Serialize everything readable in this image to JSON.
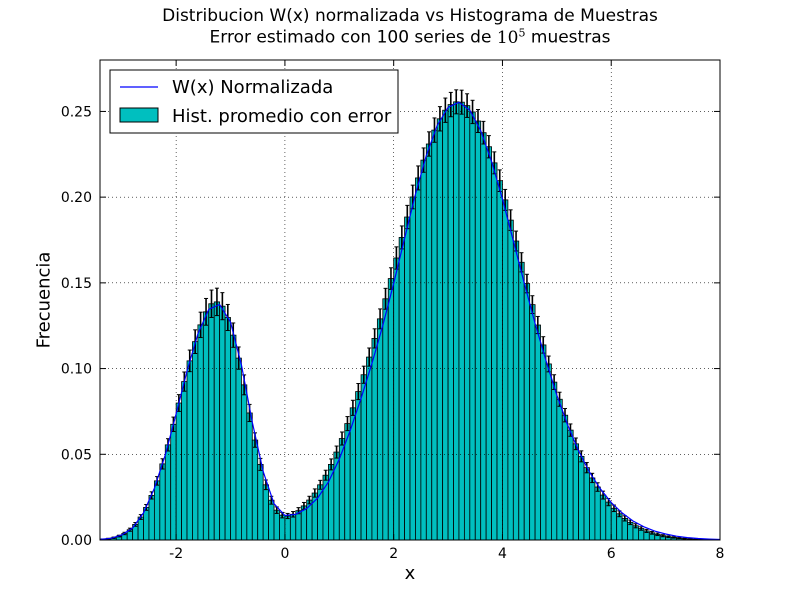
{
  "chart_data": {
    "type": "bar",
    "title": "Distribucion W(x) normalizada vs Histograma de Muestras",
    "subtitle_prefix": "Error estimado con 100 series de ",
    "subtitle_base": "10",
    "subtitle_exp": "5",
    "subtitle_suffix": " muestras",
    "xlabel": "x",
    "ylabel": "Frecuencia",
    "xlim": [
      -3.4,
      8.0
    ],
    "ylim": [
      0.0,
      0.28
    ],
    "x_ticks": [
      -2,
      0,
      2,
      4,
      6,
      8
    ],
    "x_tick_labels": [
      "-2",
      "0",
      "2",
      "4",
      "6",
      "8"
    ],
    "y_ticks": [
      0.0,
      0.05,
      0.1,
      0.15,
      0.2,
      0.25
    ],
    "y_tick_labels": [
      "0.00",
      "0.05",
      "0.10",
      "0.15",
      "0.20",
      "0.25"
    ],
    "grid": true,
    "legend_position": "top-left",
    "series": [
      {
        "name": "W(x) Normalizada",
        "kind": "line",
        "color": "#0000ff"
      },
      {
        "name": "Hist. promedio con error",
        "kind": "histogram",
        "color": "#00bfbf",
        "errorbar_color": "#000000"
      }
    ],
    "bin_width": 0.1,
    "histogram_x": [
      -3.35,
      -3.25,
      -3.15,
      -3.05,
      -2.95,
      -2.85,
      -2.75,
      -2.65,
      -2.55,
      -2.45,
      -2.35,
      -2.25,
      -2.15,
      -2.05,
      -1.95,
      -1.85,
      -1.75,
      -1.65,
      -1.55,
      -1.45,
      -1.35,
      -1.25,
      -1.15,
      -1.05,
      -0.95,
      -0.85,
      -0.75,
      -0.65,
      -0.55,
      -0.45,
      -0.35,
      -0.25,
      -0.15,
      -0.05,
      0.05,
      0.15,
      0.25,
      0.35,
      0.45,
      0.55,
      0.65,
      0.75,
      0.85,
      0.95,
      1.05,
      1.15,
      1.25,
      1.35,
      1.45,
      1.55,
      1.65,
      1.75,
      1.85,
      1.95,
      2.05,
      2.15,
      2.25,
      2.35,
      2.45,
      2.55,
      2.65,
      2.75,
      2.85,
      2.95,
      3.05,
      3.15,
      3.25,
      3.35,
      3.45,
      3.55,
      3.65,
      3.75,
      3.85,
      3.95,
      4.05,
      4.15,
      4.25,
      4.35,
      4.45,
      4.55,
      4.65,
      4.75,
      4.85,
      4.95,
      5.05,
      5.15,
      5.25,
      5.35,
      5.45,
      5.55,
      5.65,
      5.75,
      5.85,
      5.95,
      6.05,
      6.15,
      6.25,
      6.35,
      6.45,
      6.55,
      6.65,
      6.75,
      6.85,
      6.95,
      7.05,
      7.15,
      7.25,
      7.35,
      7.45,
      7.55,
      7.65,
      7.75,
      7.85,
      7.95
    ],
    "histogram_values": [
      0.0004,
      0.0007,
      0.0013,
      0.0023,
      0.0038,
      0.006,
      0.0091,
      0.0134,
      0.019,
      0.026,
      0.0345,
      0.0444,
      0.0555,
      0.0675,
      0.0799,
      0.0924,
      0.1045,
      0.1157,
      0.1255,
      0.1331,
      0.1378,
      0.1389,
      0.1364,
      0.1298,
      0.1195,
      0.1061,
      0.0905,
      0.0741,
      0.0583,
      0.0441,
      0.0322,
      0.0232,
      0.0174,
      0.0145,
      0.014,
      0.015,
      0.0171,
      0.0199,
      0.0233,
      0.0274,
      0.0322,
      0.0378,
      0.0441,
      0.0513,
      0.0592,
      0.0679,
      0.0771,
      0.0866,
      0.0964,
      0.1067,
      0.1176,
      0.129,
      0.1407,
      0.1525,
      0.1645,
      0.1765,
      0.1884,
      0.2001,
      0.2112,
      0.2216,
      0.231,
      0.2391,
      0.2457,
      0.2507,
      0.254,
      0.2556,
      0.2554,
      0.2534,
      0.2497,
      0.2444,
      0.2376,
      0.2294,
      0.22,
      0.2096,
      0.1984,
      0.1866,
      0.1744,
      0.162,
      0.1496,
      0.1373,
      0.1254,
      0.1138,
      0.1027,
      0.0921,
      0.0821,
      0.0728,
      0.0641,
      0.0561,
      0.0488,
      0.0422,
      0.0362,
      0.0309,
      0.0262,
      0.0221,
      0.0185,
      0.0153,
      0.0126,
      0.0103,
      0.0083,
      0.0067,
      0.0053,
      0.0042,
      0.0033,
      0.0025,
      0.0019,
      0.0015,
      0.0011,
      0.0008,
      0.0006,
      0.0004,
      0.0003,
      0.0002,
      0.0001,
      0.0001
    ],
    "histogram_errors": [
      0.0002,
      0.0003,
      0.0004,
      0.0005,
      0.0007,
      0.0009,
      0.0011,
      0.0014,
      0.0017,
      0.0021,
      0.0025,
      0.003,
      0.0036,
      0.0042,
      0.0049,
      0.0056,
      0.0063,
      0.0069,
      0.0074,
      0.0078,
      0.008,
      0.008,
      0.0079,
      0.0076,
      0.0071,
      0.0065,
      0.0058,
      0.005,
      0.0042,
      0.0035,
      0.0028,
      0.0023,
      0.0019,
      0.0016,
      0.0015,
      0.0016,
      0.0018,
      0.002,
      0.0022,
      0.0024,
      0.0026,
      0.0029,
      0.0032,
      0.0035,
      0.0038,
      0.0041,
      0.0044,
      0.0047,
      0.005,
      0.0053,
      0.0056,
      0.0058,
      0.0061,
      0.0063,
      0.0065,
      0.0067,
      0.0068,
      0.0069,
      0.007,
      0.0071,
      0.0071,
      0.0071,
      0.0071,
      0.0071,
      0.0071,
      0.007,
      0.007,
      0.0069,
      0.0068,
      0.0067,
      0.0066,
      0.0065,
      0.0064,
      0.0063,
      0.0061,
      0.006,
      0.0058,
      0.0056,
      0.0054,
      0.0052,
      0.005,
      0.0048,
      0.0046,
      0.0043,
      0.0041,
      0.0039,
      0.0036,
      0.0034,
      0.0032,
      0.003,
      0.0027,
      0.0025,
      0.0023,
      0.0021,
      0.0019,
      0.0017,
      0.0015,
      0.0013,
      0.0012,
      0.001,
      0.0009,
      0.0008,
      0.0007,
      0.0006,
      0.0005,
      0.0004,
      0.0003,
      0.0003,
      0.0002,
      0.0002,
      0.0001,
      0.0001,
      0.0001,
      0.0001
    ],
    "line_x": [
      -3.4,
      -3.2,
      -3.0,
      -2.8,
      -2.6,
      -2.4,
      -2.2,
      -2.0,
      -1.8,
      -1.6,
      -1.4,
      -1.2,
      -1.0,
      -0.8,
      -0.6,
      -0.4,
      -0.2,
      0.0,
      0.2,
      0.4,
      0.6,
      0.8,
      1.0,
      1.2,
      1.4,
      1.6,
      1.8,
      2.0,
      2.2,
      2.4,
      2.6,
      2.8,
      3.0,
      3.2,
      3.4,
      3.6,
      3.8,
      4.0,
      4.2,
      4.4,
      4.6,
      4.8,
      5.0,
      5.2,
      5.4,
      5.6,
      5.8,
      6.0,
      6.2,
      6.4,
      6.6,
      6.8,
      7.0,
      7.2,
      7.4,
      7.6,
      7.8,
      8.0
    ],
    "line_y": [
      0.0004,
      0.001,
      0.0029,
      0.007,
      0.0158,
      0.0302,
      0.0497,
      0.0735,
      0.0985,
      0.1203,
      0.1346,
      0.1374,
      0.1271,
      0.1022,
      0.0687,
      0.0399,
      0.0212,
      0.0143,
      0.015,
      0.0184,
      0.0244,
      0.0338,
      0.0472,
      0.0639,
      0.0827,
      0.1029,
      0.1251,
      0.1497,
      0.176,
      0.2016,
      0.2243,
      0.2418,
      0.2524,
      0.2553,
      0.2507,
      0.2388,
      0.2208,
      0.1988,
      0.1746,
      0.15,
      0.1263,
      0.1046,
      0.0845,
      0.067,
      0.052,
      0.0396,
      0.0298,
      0.0219,
      0.0158,
      0.0111,
      0.0077,
      0.0052,
      0.0035,
      0.0022,
      0.0014,
      0.0009,
      0.0005,
      0.0003
    ]
  }
}
